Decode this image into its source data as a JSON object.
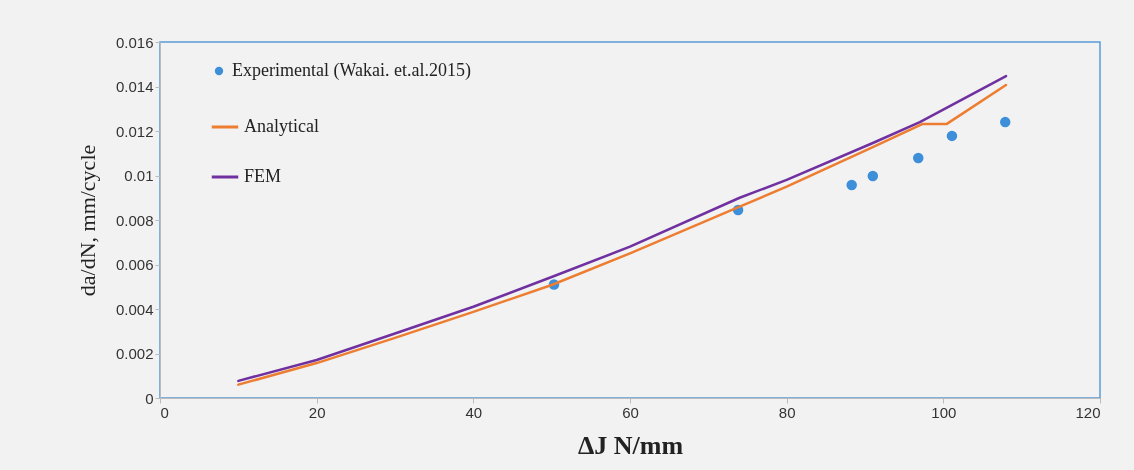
{
  "chart_data": {
    "type": "line",
    "xlabel": "ΔJ N/mm",
    "ylabel": "da/dN, mm/cycle",
    "xlim": [
      0,
      120
    ],
    "xticks": [
      0,
      20,
      40,
      60,
      80,
      100,
      120
    ],
    "ylim": [
      0,
      0.016
    ],
    "yticks": [
      0,
      0.002,
      0.004,
      0.006,
      0.008,
      0.01,
      0.012,
      0.014,
      0.016
    ],
    "grid": false,
    "legend": "top left",
    "series": [
      {
        "name": "Experimental (Wakai. et.al.2015)",
        "type": "scatter",
        "marker": "circle",
        "color": "#3c8fd8",
        "x": [
          50.3,
          73.8,
          88.3,
          91.0,
          96.8,
          101.1,
          107.9
        ],
        "values": [
          0.0051,
          0.00845,
          0.00957,
          0.00998,
          0.01079,
          0.01178,
          0.0124
        ]
      },
      {
        "name": "Analytical",
        "color": "#ed7d31",
        "x": [
          10,
          20,
          30,
          40,
          50,
          60,
          74,
          80,
          91,
          97.3,
          100.4,
          108
        ],
        "values": [
          0.0006,
          0.00157,
          0.0027,
          0.00387,
          0.00508,
          0.0065,
          0.0086,
          0.0095,
          0.01128,
          0.01231,
          0.01231,
          0.01407
        ]
      },
      {
        "name": "FEM",
        "color": "#7030a0",
        "x": [
          10,
          20,
          30,
          40,
          50,
          60,
          74,
          80,
          91,
          97,
          108
        ],
        "values": [
          0.00077,
          0.00171,
          0.0029,
          0.0041,
          0.00544,
          0.0068,
          0.009,
          0.0098,
          0.01146,
          0.0124,
          0.01447
        ]
      }
    ]
  }
}
